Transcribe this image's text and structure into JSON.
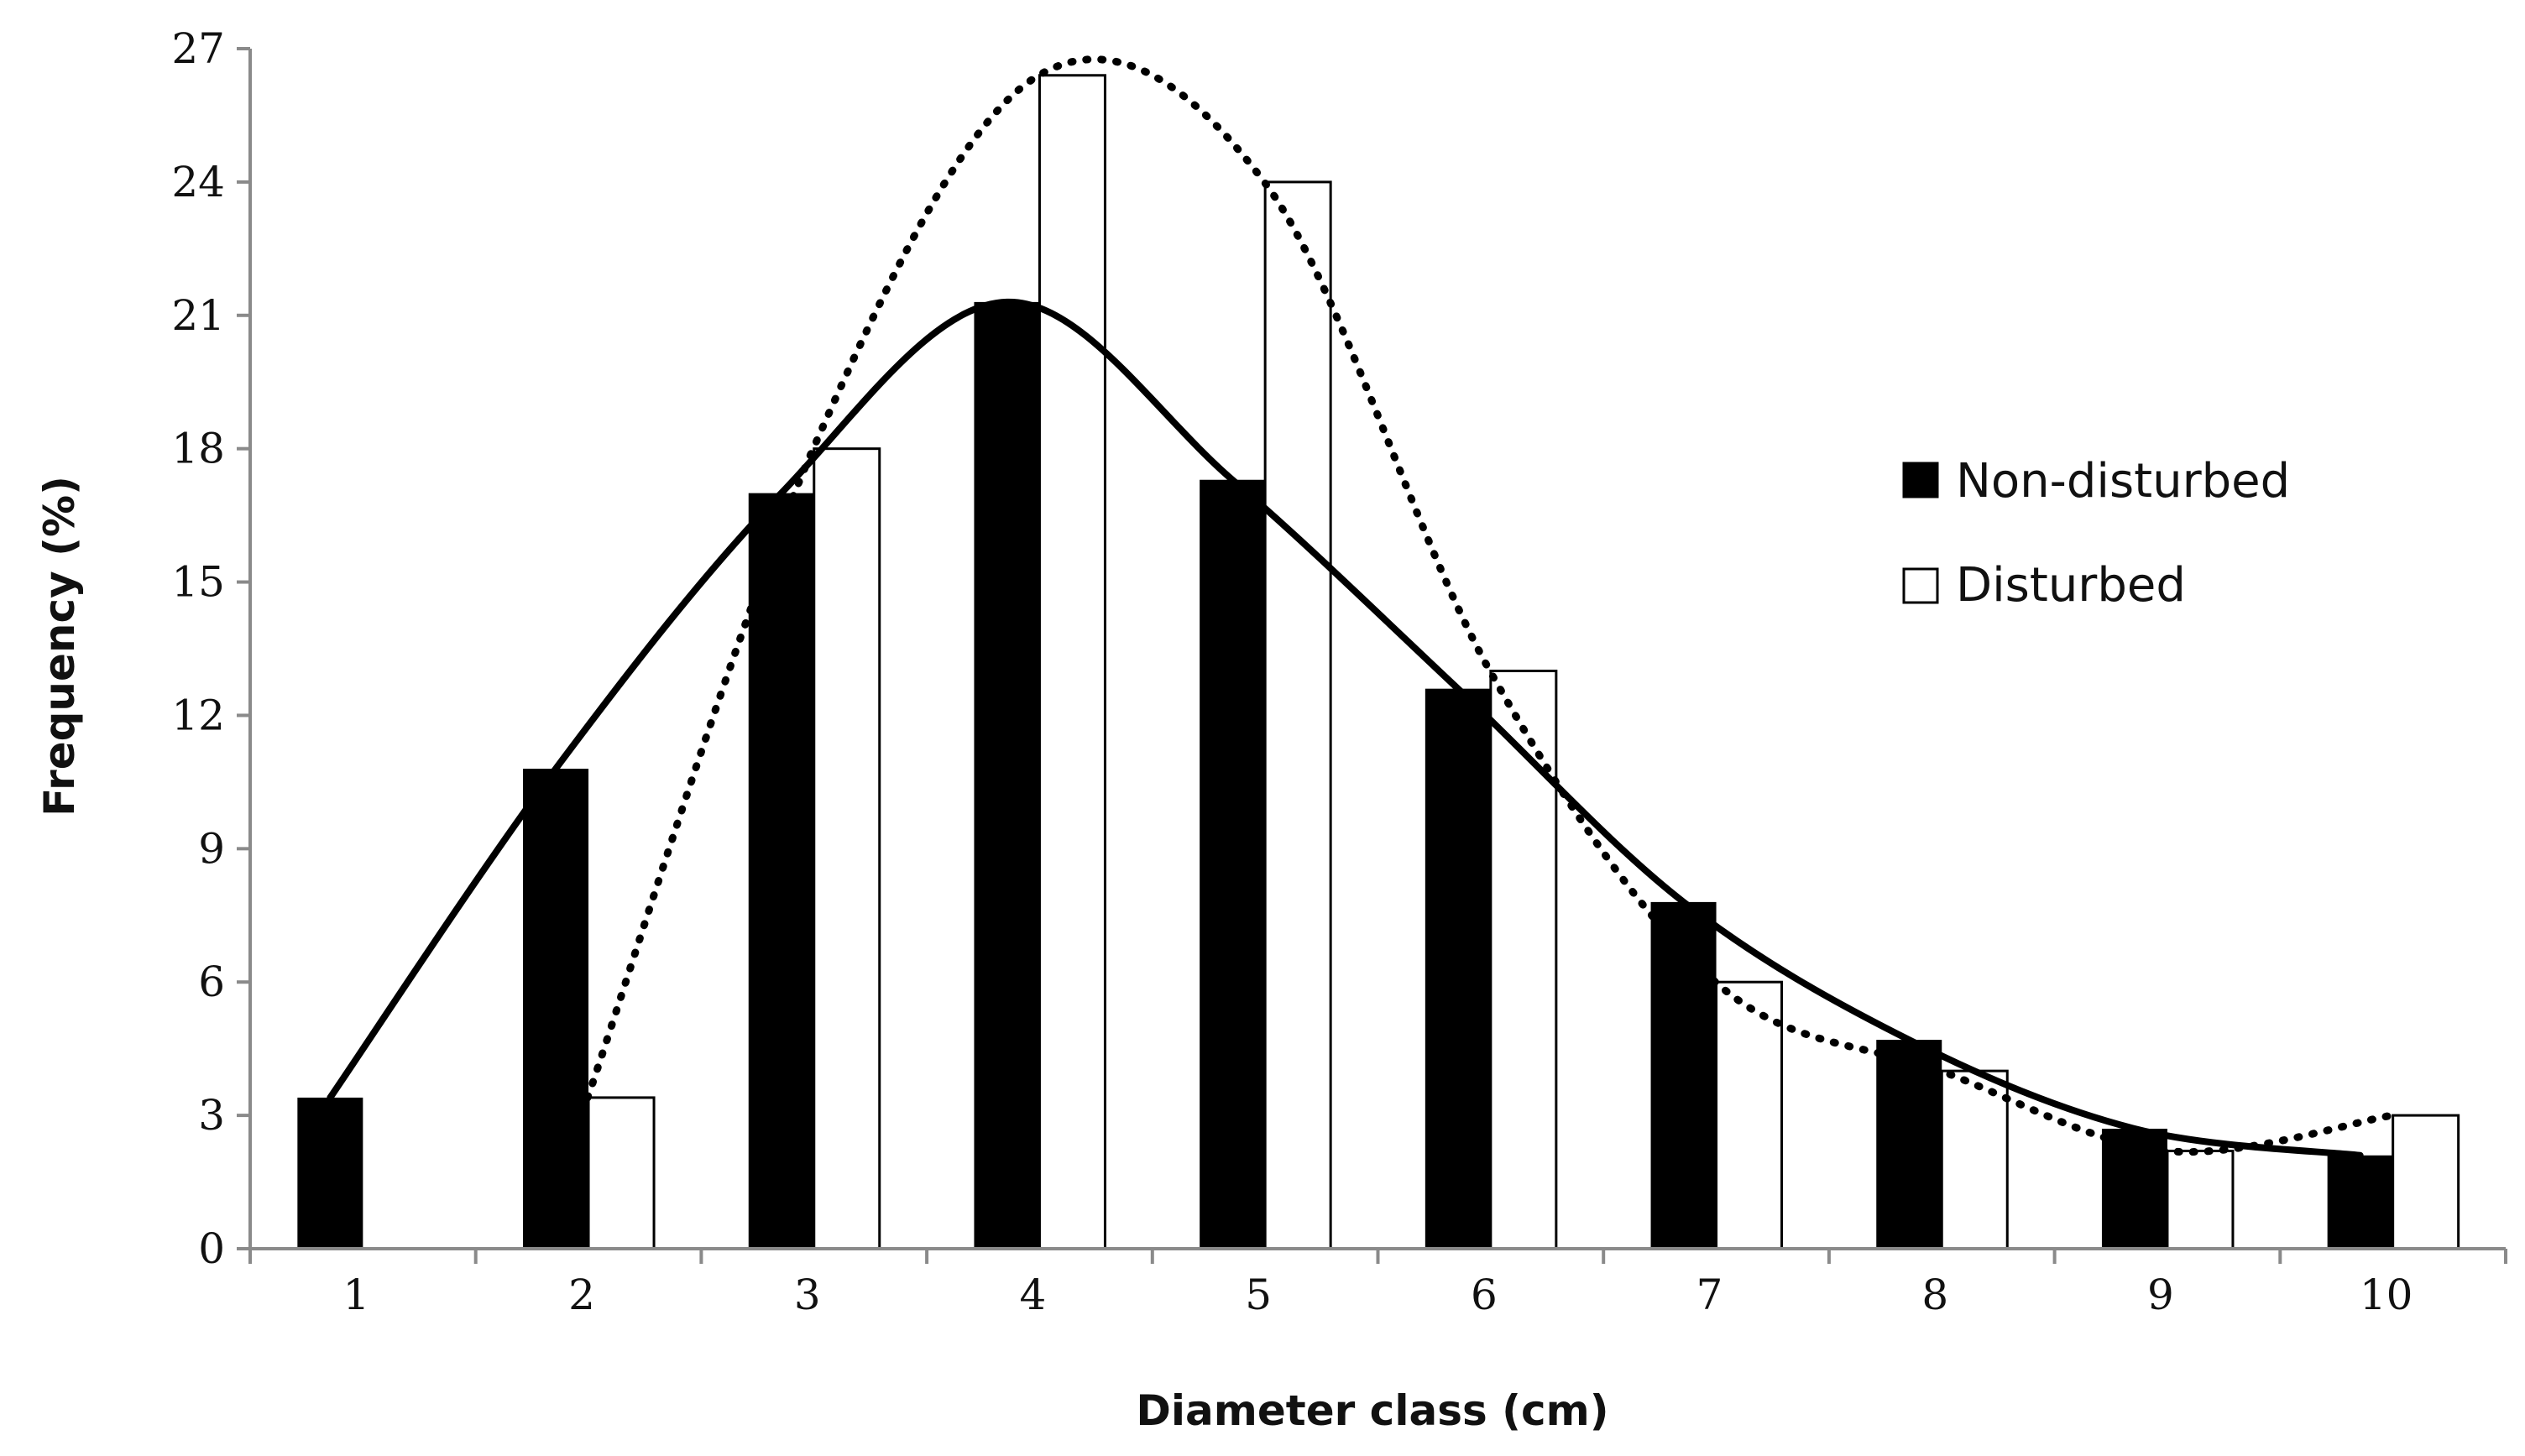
{
  "chart_data": {
    "type": "bar",
    "title": "",
    "xlabel": "Diameter class (cm)",
    "ylabel": "Frequency (%)",
    "ylim": [
      0,
      27
    ],
    "yticks": [
      0,
      3,
      6,
      9,
      12,
      15,
      18,
      21,
      24,
      27
    ],
    "categories": [
      "1",
      "2",
      "3",
      "4",
      "5",
      "6",
      "7",
      "8",
      "9",
      "10"
    ],
    "series": [
      {
        "name": "Non-disturbed",
        "fill": "#000000",
        "values": [
          3.4,
          10.8,
          17.0,
          21.3,
          17.3,
          12.6,
          7.8,
          4.7,
          2.7,
          2.1
        ]
      },
      {
        "name": "Disturbed",
        "fill": "#ffffff",
        "values": [
          0,
          3.4,
          18.0,
          26.4,
          24.0,
          13.0,
          6.0,
          4.0,
          2.2,
          3.0
        ]
      }
    ],
    "trendlines": [
      {
        "series": "Non-disturbed",
        "style": "solid",
        "color": "#000000"
      },
      {
        "series": "Disturbed",
        "style": "dotted",
        "color": "#000000"
      }
    ],
    "grid": false,
    "legend": "right"
  }
}
